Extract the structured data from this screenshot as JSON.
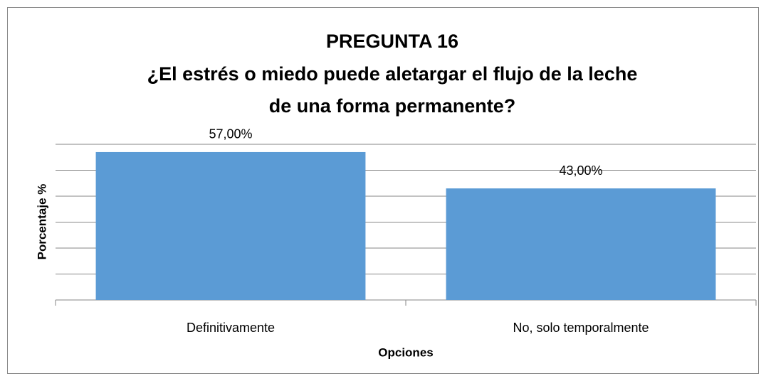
{
  "chart_data": {
    "type": "bar",
    "title": "PREGUNTA 16",
    "subtitle": [
      "¿El estrés o miedo puede aletargar el flujo de la leche",
      "de una forma permanente?"
    ],
    "x_label": "Opciones",
    "y_label": "Porcentaje %",
    "categories": [
      "Definitivamente",
      "No, solo temporalmente"
    ],
    "values": [
      57,
      43
    ],
    "value_labels": [
      "57,00%",
      "43,00%"
    ],
    "color": "#5b9bd5",
    "ylim": [
      0,
      60
    ],
    "yticks": [
      0,
      10,
      20,
      30,
      40,
      50,
      60
    ],
    "grid": true
  }
}
